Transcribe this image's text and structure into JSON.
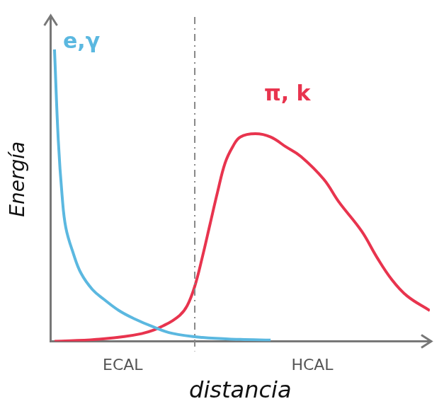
{
  "chart_data": {
    "type": "line",
    "x_label": "distancia",
    "y_label": "Energía",
    "xlim": [
      0,
      100
    ],
    "ylim": [
      0,
      100
    ],
    "grid": false,
    "tick_labels": false,
    "legend": "none",
    "divider_x": 38,
    "divider_line_style": "dashed",
    "regions": [
      "ECAL",
      "HCAL"
    ],
    "series": [
      {
        "name": "e,γ",
        "color": "#5bb8e0",
        "line_style": "solid",
        "x": [
          1,
          2,
          3,
          4,
          6,
          8,
          11,
          14,
          18,
          22,
          27,
          32,
          40,
          50,
          58
        ],
        "values": [
          90,
          62,
          45,
          35,
          27,
          21,
          16,
          13,
          9.5,
          7,
          4.5,
          2.5,
          1.2,
          0.6,
          0.4
        ]
      },
      {
        "name": "π, k",
        "color": "#e8344e",
        "line_style": "solid",
        "x": [
          1,
          12,
          24,
          30,
          34,
          36,
          38,
          40,
          42,
          44,
          46,
          48,
          50,
          54,
          58,
          62,
          66,
          72,
          76,
          82,
          86,
          90,
          94,
          100
        ],
        "values": [
          0,
          0.6,
          2.4,
          5,
          8,
          11,
          17,
          26,
          36,
          46,
          55,
          60,
          63,
          64,
          63,
          60,
          57,
          50,
          43,
          34,
          26,
          19,
          14,
          9.5
        ]
      }
    ]
  }
}
